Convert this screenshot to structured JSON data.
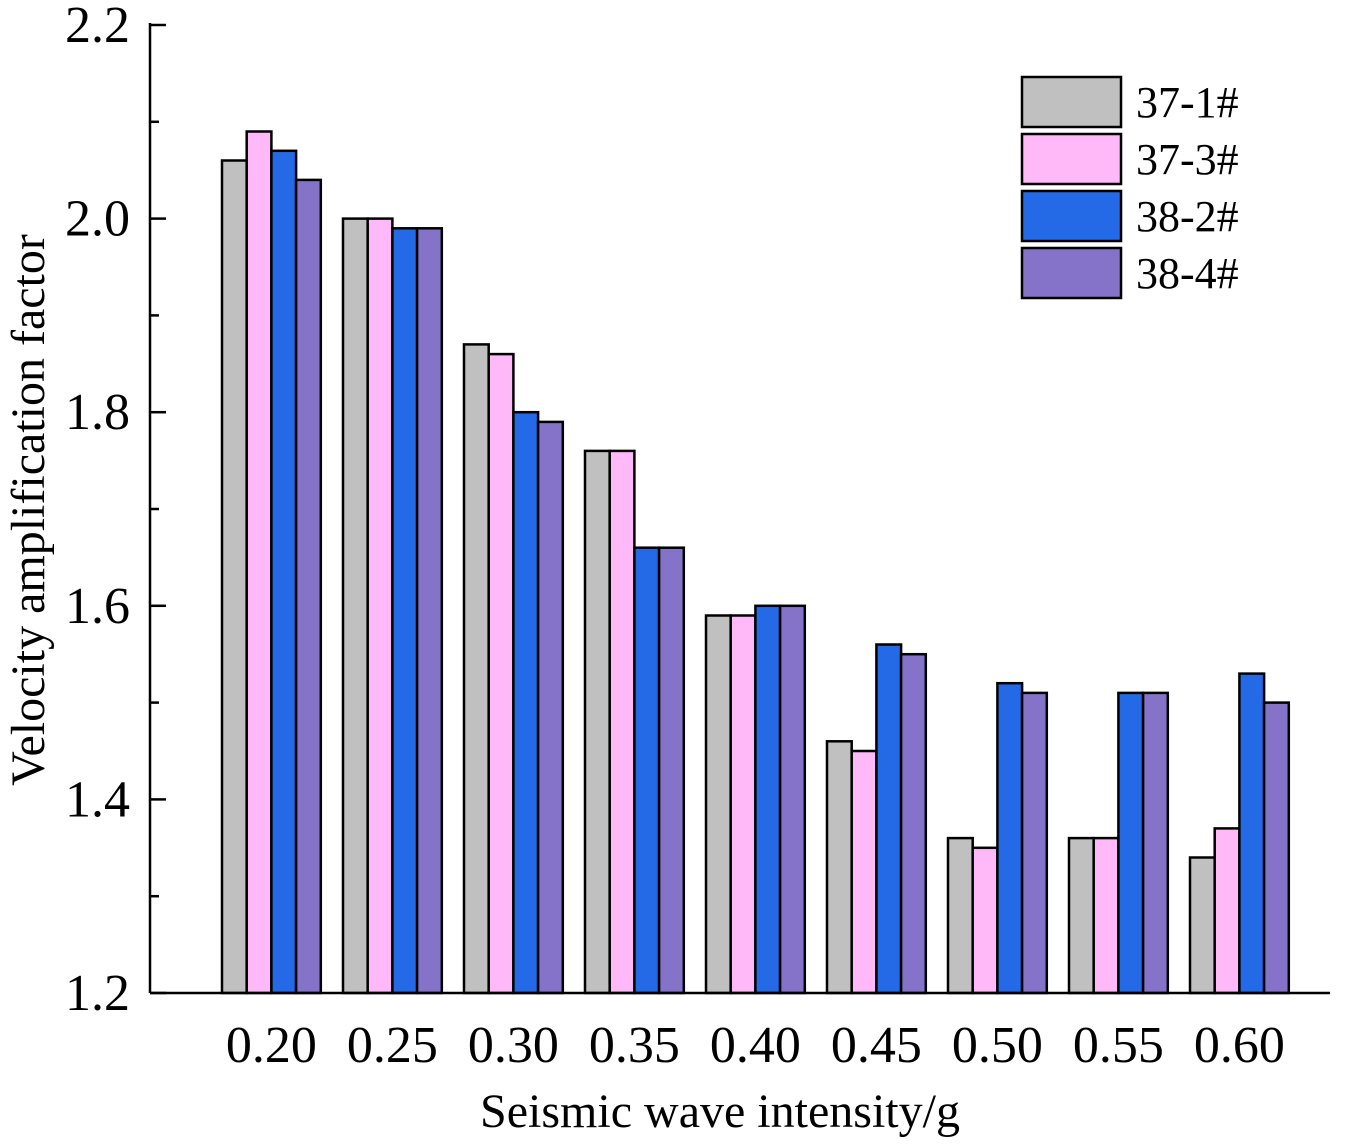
{
  "chart_data": {
    "type": "bar",
    "title": "",
    "xlabel": "Seismic wave intensity/g",
    "ylabel": "Velocity amplification factor",
    "ylim": [
      1.2,
      2.2
    ],
    "yticks": [
      "1.2",
      "1.4",
      "1.6",
      "1.8",
      "2.0",
      "2.2"
    ],
    "categories": [
      "0.20",
      "0.25",
      "0.30",
      "0.35",
      "0.40",
      "0.45",
      "0.50",
      "0.55",
      "0.60"
    ],
    "series": [
      {
        "name": "37-1#",
        "color": "#c0c0c0",
        "values": [
          2.06,
          2.0,
          1.87,
          1.76,
          1.59,
          1.46,
          1.36,
          1.36,
          1.34
        ]
      },
      {
        "name": "37-3#",
        "color": "#ffb8f8",
        "values": [
          2.09,
          2.0,
          1.86,
          1.76,
          1.59,
          1.45,
          1.35,
          1.36,
          1.37
        ]
      },
      {
        "name": "38-2#",
        "color": "#246ae6",
        "values": [
          2.07,
          1.99,
          1.8,
          1.66,
          1.6,
          1.56,
          1.52,
          1.51,
          1.53
        ]
      },
      {
        "name": "38-4#",
        "color": "#8473c9",
        "values": [
          2.04,
          1.99,
          1.79,
          1.66,
          1.6,
          1.55,
          1.51,
          1.51,
          1.5
        ]
      }
    ],
    "legend_position": "top-right",
    "grid": false
  }
}
